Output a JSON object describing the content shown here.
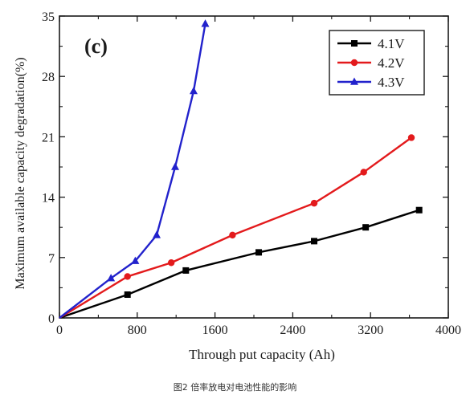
{
  "chart_data": {
    "type": "line",
    "panel_label": "(c)",
    "title": "",
    "xlabel": "Through put capacity (Ah)",
    "ylabel": "Maximum available capacity degradation(%)",
    "xlim": [
      0,
      4000
    ],
    "ylim": [
      0,
      35
    ],
    "xticks": [
      0,
      800,
      1600,
      2400,
      3200,
      4000
    ],
    "yticks": [
      0,
      7,
      14,
      21,
      28,
      35
    ],
    "grid": false,
    "legend_position": "top-right",
    "series": [
      {
        "name": "4.1V",
        "color": "#000000",
        "marker": "square",
        "x": [
          0,
          700,
          1300,
          2050,
          2620,
          3150,
          3700
        ],
        "y": [
          0,
          2.7,
          5.5,
          7.6,
          8.9,
          10.5,
          12.5
        ]
      },
      {
        "name": "4.2V",
        "color": "#e31a1c",
        "marker": "circle",
        "x": [
          0,
          700,
          1150,
          1780,
          2620,
          3130,
          3620
        ],
        "y": [
          0,
          4.8,
          6.4,
          9.6,
          13.3,
          16.9,
          20.9
        ]
      },
      {
        "name": "4.3V",
        "color": "#2222cc",
        "marker": "triangle",
        "x": [
          0,
          530,
          780,
          1000,
          1190,
          1380,
          1500
        ],
        "y": [
          0,
          4.6,
          6.6,
          9.6,
          17.5,
          26.3,
          34.1
        ]
      }
    ]
  },
  "caption": "图2 倍率放电对电池性能的影响"
}
